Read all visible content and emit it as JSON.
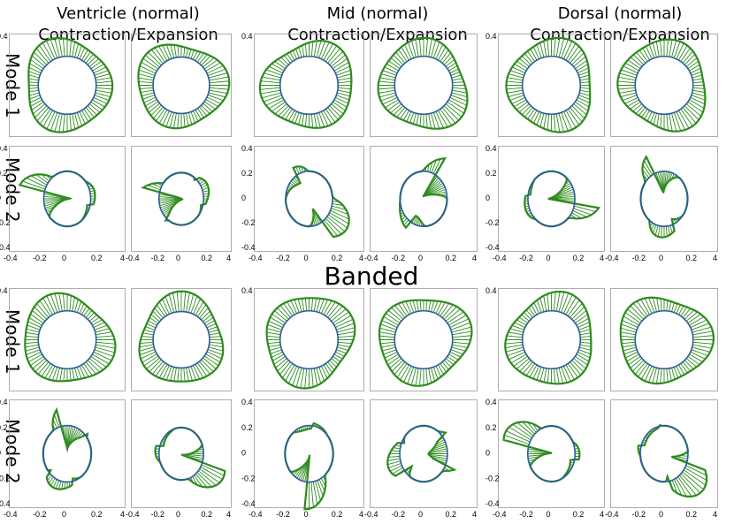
{
  "columns": [
    {
      "title_line1": "Ventricle (normal)",
      "title_line2": "Contraction/Expansion"
    },
    {
      "title_line1": "Mid (normal)",
      "title_line2": "Contraction/Expansion"
    },
    {
      "title_line1": "Dorsal (normal)",
      "title_line2": "Contraction/Expansion"
    }
  ],
  "row_labels": [
    "Mode 1",
    "Mode 2",
    "Mode 1",
    "Mode 2"
  ],
  "section_label": "Banded",
  "colors": {
    "contour": "#2c5aa0",
    "arrows": "#2e8b1e",
    "frame": "#999999"
  },
  "ticks": {
    "y": [
      "0.4",
      "0.2",
      "0",
      "-0.2",
      "-0.4"
    ],
    "x": [
      "-0.4",
      "-0.2",
      "0",
      "0.2",
      "4"
    ]
  }
}
